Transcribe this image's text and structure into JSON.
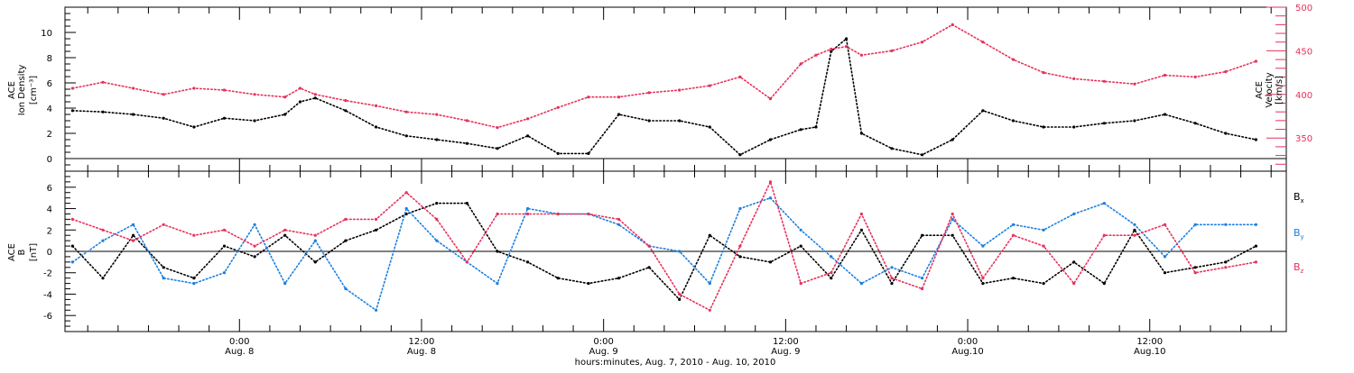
{
  "colors": {
    "bx": "#000000",
    "by": "#1a7fe0",
    "bz": "#e8305a",
    "density": "#000000",
    "velocity": "#e8305a",
    "frame": "#000000"
  },
  "chart_data": [
    {
      "type": "scatter",
      "panel": "top",
      "ylabel_left": {
        "line1": "ACE",
        "line2": "Ion Density",
        "unit": "[cm⁻³]"
      },
      "ylabel_right": {
        "line1": "ACE",
        "line2": "Velocity",
        "unit": "[km/s]"
      },
      "ylim_left": [
        -1,
        12
      ],
      "yticks_left": [
        0,
        2,
        4,
        6,
        8,
        10
      ],
      "ylim_right": [
        312,
        500
      ],
      "yticks_right": [
        350,
        400,
        450,
        500
      ],
      "xlim_hours": [
        -11.5,
        69
      ],
      "zero_line": true,
      "series": [
        {
          "key": "density",
          "axis": "left",
          "x": [
            -11,
            -9,
            -7,
            -5,
            -3,
            -1,
            1,
            3,
            4,
            5,
            7,
            9,
            11,
            13,
            15,
            17,
            19,
            21,
            23,
            25,
            27,
            29,
            31,
            33,
            35,
            37,
            38,
            39,
            40,
            41,
            43,
            45,
            47,
            49,
            51,
            53,
            55,
            57,
            59,
            61,
            63,
            65,
            67
          ],
          "values": [
            3.8,
            3.7,
            3.5,
            3.2,
            2.5,
            3.2,
            3.0,
            3.5,
            4.5,
            4.8,
            3.8,
            2.5,
            1.8,
            1.5,
            1.2,
            0.8,
            1.8,
            0.4,
            0.4,
            3.5,
            3.0,
            3.0,
            2.5,
            0.3,
            1.5,
            2.3,
            2.5,
            8.5,
            9.5,
            2.0,
            0.8,
            0.3,
            1.5,
            3.8,
            3.0,
            2.5,
            2.5,
            2.8,
            3.0,
            3.5,
            2.8,
            2.0,
            1.5
          ]
        },
        {
          "key": "velocity",
          "axis": "right",
          "x": [
            -11,
            -9,
            -7,
            -5,
            -3,
            -1,
            1,
            3,
            4,
            5,
            7,
            9,
            11,
            13,
            15,
            17,
            19,
            21,
            23,
            25,
            27,
            29,
            31,
            33,
            35,
            37,
            38,
            39,
            40,
            41,
            43,
            45,
            47,
            49,
            51,
            53,
            55,
            57,
            59,
            61,
            63,
            65,
            67
          ],
          "values": [
            407,
            414,
            407,
            400,
            407,
            405,
            400,
            397,
            407,
            400,
            393,
            387,
            380,
            377,
            370,
            362,
            372,
            385,
            397,
            397,
            402,
            405,
            410,
            420,
            395,
            435,
            445,
            452,
            455,
            445,
            450,
            460,
            480,
            460,
            440,
            425,
            418,
            415,
            412,
            422,
            420,
            426,
            438
          ]
        }
      ]
    },
    {
      "type": "scatter",
      "panel": "bottom",
      "ylabel_left": {
        "line1": "ACE",
        "line2": "B",
        "unit": "[nT]"
      },
      "ylim": [
        -7.5,
        7.5
      ],
      "yticks": [
        -6,
        -4,
        -2,
        0,
        2,
        4,
        6
      ],
      "xlim_hours": [
        -11.5,
        69
      ],
      "x_tick_labels": [
        {
          "hour": 0,
          "top": "0:00",
          "bottom": "Aug. 8"
        },
        {
          "hour": 12,
          "top": "12:00",
          "bottom": "Aug. 8"
        },
        {
          "hour": 24,
          "top": "0:00",
          "bottom": "Aug. 9"
        },
        {
          "hour": 36,
          "top": "12:00",
          "bottom": "Aug. 9"
        },
        {
          "hour": 48,
          "top": "0:00",
          "bottom": "Aug.10"
        },
        {
          "hour": 60,
          "top": "12:00",
          "bottom": "Aug.10"
        }
      ],
      "xlabel": "hours:minutes, Aug.  7, 2010 - Aug. 10, 2010",
      "zero_line": true,
      "legend": [
        "Bx",
        "By",
        "Bz"
      ],
      "series": [
        {
          "key": "bx",
          "name": "Bx",
          "x": [
            -11,
            -9,
            -7,
            -5,
            -3,
            -1,
            1,
            3,
            5,
            7,
            9,
            11,
            13,
            15,
            17,
            19,
            21,
            23,
            25,
            27,
            29,
            31,
            33,
            35,
            37,
            39,
            41,
            43,
            45,
            47,
            49,
            51,
            53,
            55,
            57,
            59,
            61,
            63,
            65,
            67
          ],
          "values": [
            0.5,
            -2.5,
            1.5,
            -1.5,
            -2.5,
            0.5,
            -0.5,
            1.5,
            -1.0,
            1.0,
            2.0,
            3.5,
            4.5,
            4.5,
            0.0,
            -1.0,
            -2.5,
            -3.0,
            -2.5,
            -1.5,
            -4.5,
            1.5,
            -0.5,
            -1.0,
            0.5,
            -2.5,
            2.0,
            -3.0,
            1.5,
            1.5,
            -3.0,
            -2.5,
            -3.0,
            -1.0,
            -3.0,
            2.0,
            -2.0,
            -1.5,
            -1.0,
            0.5
          ]
        },
        {
          "key": "by",
          "name": "By",
          "x": [
            -11,
            -9,
            -7,
            -5,
            -3,
            -1,
            1,
            3,
            5,
            7,
            9,
            11,
            13,
            15,
            17,
            19,
            21,
            23,
            25,
            27,
            29,
            31,
            33,
            35,
            37,
            39,
            41,
            43,
            45,
            47,
            49,
            51,
            53,
            55,
            57,
            59,
            61,
            63,
            65,
            67
          ],
          "values": [
            -1.0,
            1.0,
            2.5,
            -2.5,
            -3.0,
            -2.0,
            2.5,
            -3.0,
            1.0,
            -3.5,
            -5.5,
            4.0,
            1.0,
            -1.0,
            -3.0,
            4.0,
            3.5,
            3.5,
            2.5,
            0.5,
            0.0,
            -3.0,
            4.0,
            5.0,
            2.0,
            -0.5,
            -3.0,
            -1.5,
            -2.5,
            3.0,
            0.5,
            2.5,
            2.0,
            3.5,
            4.5,
            2.5,
            -0.5,
            2.5,
            2.5,
            2.5
          ]
        },
        {
          "key": "bz",
          "name": "Bz",
          "x": [
            -11,
            -9,
            -7,
            -5,
            -3,
            -1,
            1,
            3,
            5,
            7,
            9,
            11,
            13,
            15,
            17,
            19,
            21,
            23,
            25,
            27,
            29,
            31,
            33,
            35,
            37,
            39,
            41,
            43,
            45,
            47,
            49,
            51,
            53,
            55,
            57,
            59,
            61,
            63,
            65,
            67
          ],
          "values": [
            3.0,
            2.0,
            1.0,
            2.5,
            1.5,
            2.0,
            0.5,
            2.0,
            1.5,
            3.0,
            3.0,
            5.5,
            3.0,
            -1.0,
            3.5,
            3.5,
            3.5,
            3.5,
            3.0,
            0.5,
            -4.0,
            -5.5,
            0.5,
            6.5,
            -3.0,
            -2.0,
            3.5,
            -2.5,
            -3.5,
            3.5,
            -2.5,
            1.5,
            0.5,
            -3.0,
            1.5,
            1.5,
            2.5,
            -2.0,
            -1.5,
            -1.0
          ]
        }
      ]
    }
  ],
  "legend_labels": {
    "bx": {
      "main": "B",
      "sub": "x"
    },
    "by": {
      "main": "B",
      "sub": "y"
    },
    "bz": {
      "main": "B",
      "sub": "z"
    }
  }
}
